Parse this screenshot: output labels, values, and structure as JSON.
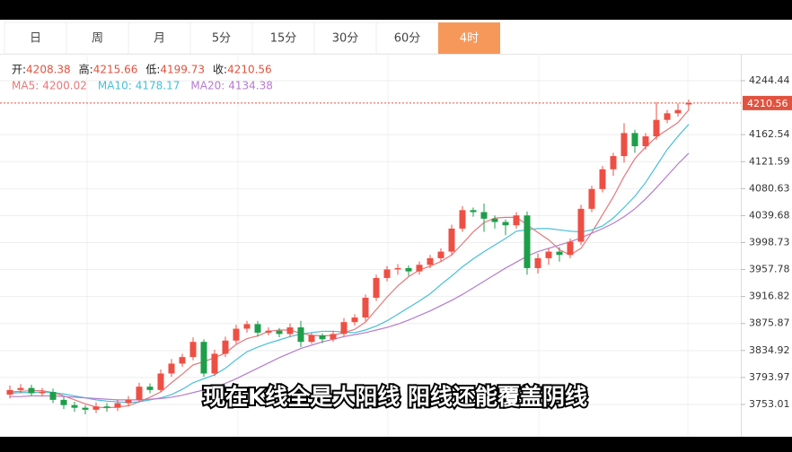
{
  "tabs": [
    "日",
    "周",
    "月",
    "5分",
    "15分",
    "30分",
    "60分",
    "4时"
  ],
  "active_tab": 7,
  "subtitle": "现在K线全是大阳线 阳线还能覆盖阴线",
  "chart_data": {
    "type": "candlestick",
    "ohlc_labels": [
      "开:",
      "高:",
      "低:",
      "收:"
    ],
    "up_color": "#ee4f44",
    "down_color": "#1e9e4a",
    "open": [
      3768,
      3775,
      3778,
      3770,
      3772,
      3760,
      3752,
      3748,
      3745,
      3750,
      3748,
      3755,
      3760,
      3780,
      3775,
      3800,
      3815,
      3825,
      3848,
      3800,
      3830,
      3850,
      3868,
      3875,
      3862,
      3865,
      3860,
      3870,
      3848,
      3858,
      3852,
      3860,
      3878,
      3885,
      3915,
      3945,
      3958,
      3960,
      3955,
      3965,
      3975,
      3985,
      4020,
      4048,
      4045,
      4035,
      4030,
      4025,
      4040,
      3960,
      3975,
      3985,
      3980,
      4000,
      4050,
      4080,
      4110,
      4130,
      4165,
      4145,
      4160,
      4185,
      4195,
      4208.38
    ],
    "high": [
      3782,
      3784,
      3783,
      3778,
      3777,
      3764,
      3757,
      3752,
      3756,
      3755,
      3760,
      3766,
      3786,
      3785,
      3806,
      3822,
      3830,
      3855,
      3852,
      3836,
      3856,
      3874,
      3880,
      3880,
      3870,
      3869,
      3876,
      3880,
      3862,
      3861,
      3865,
      3884,
      3890,
      3920,
      3950,
      3963,
      3966,
      3964,
      3970,
      3980,
      3990,
      4026,
      4054,
      4052,
      4058,
      4040,
      4034,
      4045,
      4046,
      3982,
      3990,
      3992,
      4005,
      4056,
      4085,
      4115,
      4135,
      4180,
      4170,
      4165,
      4212,
      4200,
      4210,
      4215.66
    ],
    "low": [
      3762,
      3770,
      3766,
      3765,
      3755,
      3746,
      3742,
      3738,
      3740,
      3742,
      3743,
      3750,
      3756,
      3770,
      3772,
      3795,
      3810,
      3820,
      3795,
      3796,
      3825,
      3845,
      3862,
      3856,
      3858,
      3855,
      3855,
      3840,
      3845,
      3846,
      3848,
      3856,
      3873,
      3880,
      3910,
      3940,
      3950,
      3948,
      3950,
      3960,
      3970,
      3980,
      4015,
      4038,
      4015,
      4020,
      4010,
      4020,
      3950,
      3952,
      3965,
      3970,
      3975,
      3995,
      4045,
      4075,
      4100,
      4120,
      4135,
      4140,
      4155,
      4180,
      4190,
      4199.73
    ],
    "close": [
      3775,
      3778,
      3770,
      3772,
      3760,
      3752,
      3748,
      3745,
      3750,
      3748,
      3755,
      3760,
      3780,
      3775,
      3800,
      3815,
      3825,
      3848,
      3800,
      3830,
      3850,
      3868,
      3875,
      3862,
      3865,
      3860,
      3870,
      3848,
      3858,
      3852,
      3860,
      3878,
      3885,
      3915,
      3945,
      3958,
      3960,
      3955,
      3965,
      3975,
      3985,
      4020,
      4048,
      4045,
      4035,
      4030,
      4025,
      4040,
      3960,
      3975,
      3985,
      3980,
      4000,
      4050,
      4080,
      4110,
      4130,
      4165,
      4145,
      4160,
      4185,
      4195,
      4200,
      4210.56
    ],
    "series": [
      {
        "name": "MA5:",
        "color": "#e4787c",
        "values": [
          3772,
          3773,
          3774,
          3774,
          3771,
          3766,
          3760,
          3754,
          3749,
          3748,
          3749,
          3751,
          3757,
          3764,
          3772,
          3786,
          3799,
          3813,
          3818,
          3824,
          3831,
          3844,
          3853,
          3857,
          3864,
          3866,
          3866,
          3861,
          3858,
          3857,
          3858,
          3862,
          3867,
          3878,
          3897,
          3916,
          3933,
          3947,
          3957,
          3963,
          3970,
          3980,
          3997,
          4015,
          4029,
          4036,
          4037,
          4037,
          4026,
          4014,
          4003,
          3988,
          3980,
          3990,
          4014,
          4041,
          4068,
          4099,
          4126,
          4144,
          4159,
          4170,
          4181,
          4200.02
        ]
      },
      {
        "name": "MA10:",
        "color": "#47bfd8",
        "values": [
          3770,
          3771,
          3771,
          3772,
          3771,
          3769,
          3766,
          3763,
          3760,
          3758,
          3757,
          3756,
          3757,
          3760,
          3763,
          3768,
          3776,
          3786,
          3792,
          3798,
          3808,
          3821,
          3833,
          3840,
          3846,
          3851,
          3856,
          3860,
          3862,
          3864,
          3864,
          3863,
          3862,
          3866,
          3872,
          3880,
          3890,
          3900,
          3910,
          3921,
          3935,
          3948,
          3962,
          3974,
          3985,
          3995,
          4005,
          4016,
          4018,
          4020,
          4020,
          4018,
          4016,
          4015,
          4018,
          4024,
          4036,
          4052,
          4069,
          4090,
          4115,
          4140,
          4160,
          4178.17
        ]
      },
      {
        "name": "MA20:",
        "color": "#b57ccc",
        "values": [
          3765,
          3765,
          3766,
          3766,
          3766,
          3765,
          3764,
          3763,
          3762,
          3761,
          3760,
          3760,
          3760,
          3761,
          3762,
          3764,
          3767,
          3771,
          3775,
          3779,
          3785,
          3792,
          3800,
          3808,
          3816,
          3824,
          3831,
          3838,
          3843,
          3848,
          3852,
          3856,
          3859,
          3862,
          3866,
          3870,
          3875,
          3881,
          3888,
          3895,
          3903,
          3911,
          3920,
          3930,
          3940,
          3950,
          3960,
          3969,
          3978,
          3985,
          3990,
          3995,
          4000,
          4006,
          4013,
          4020,
          4028,
          4038,
          4050,
          4065,
          4082,
          4100,
          4118,
          4134.38
        ]
      }
    ],
    "ylim": [
      3706.7,
      4285.3
    ],
    "yticks": [
      4244.44,
      4162.54,
      4121.59,
      4080.63,
      4039.68,
      3998.73,
      3957.78,
      3916.82,
      3875.87,
      3834.92,
      3793.97,
      3753.01
    ],
    "grid": true
  }
}
